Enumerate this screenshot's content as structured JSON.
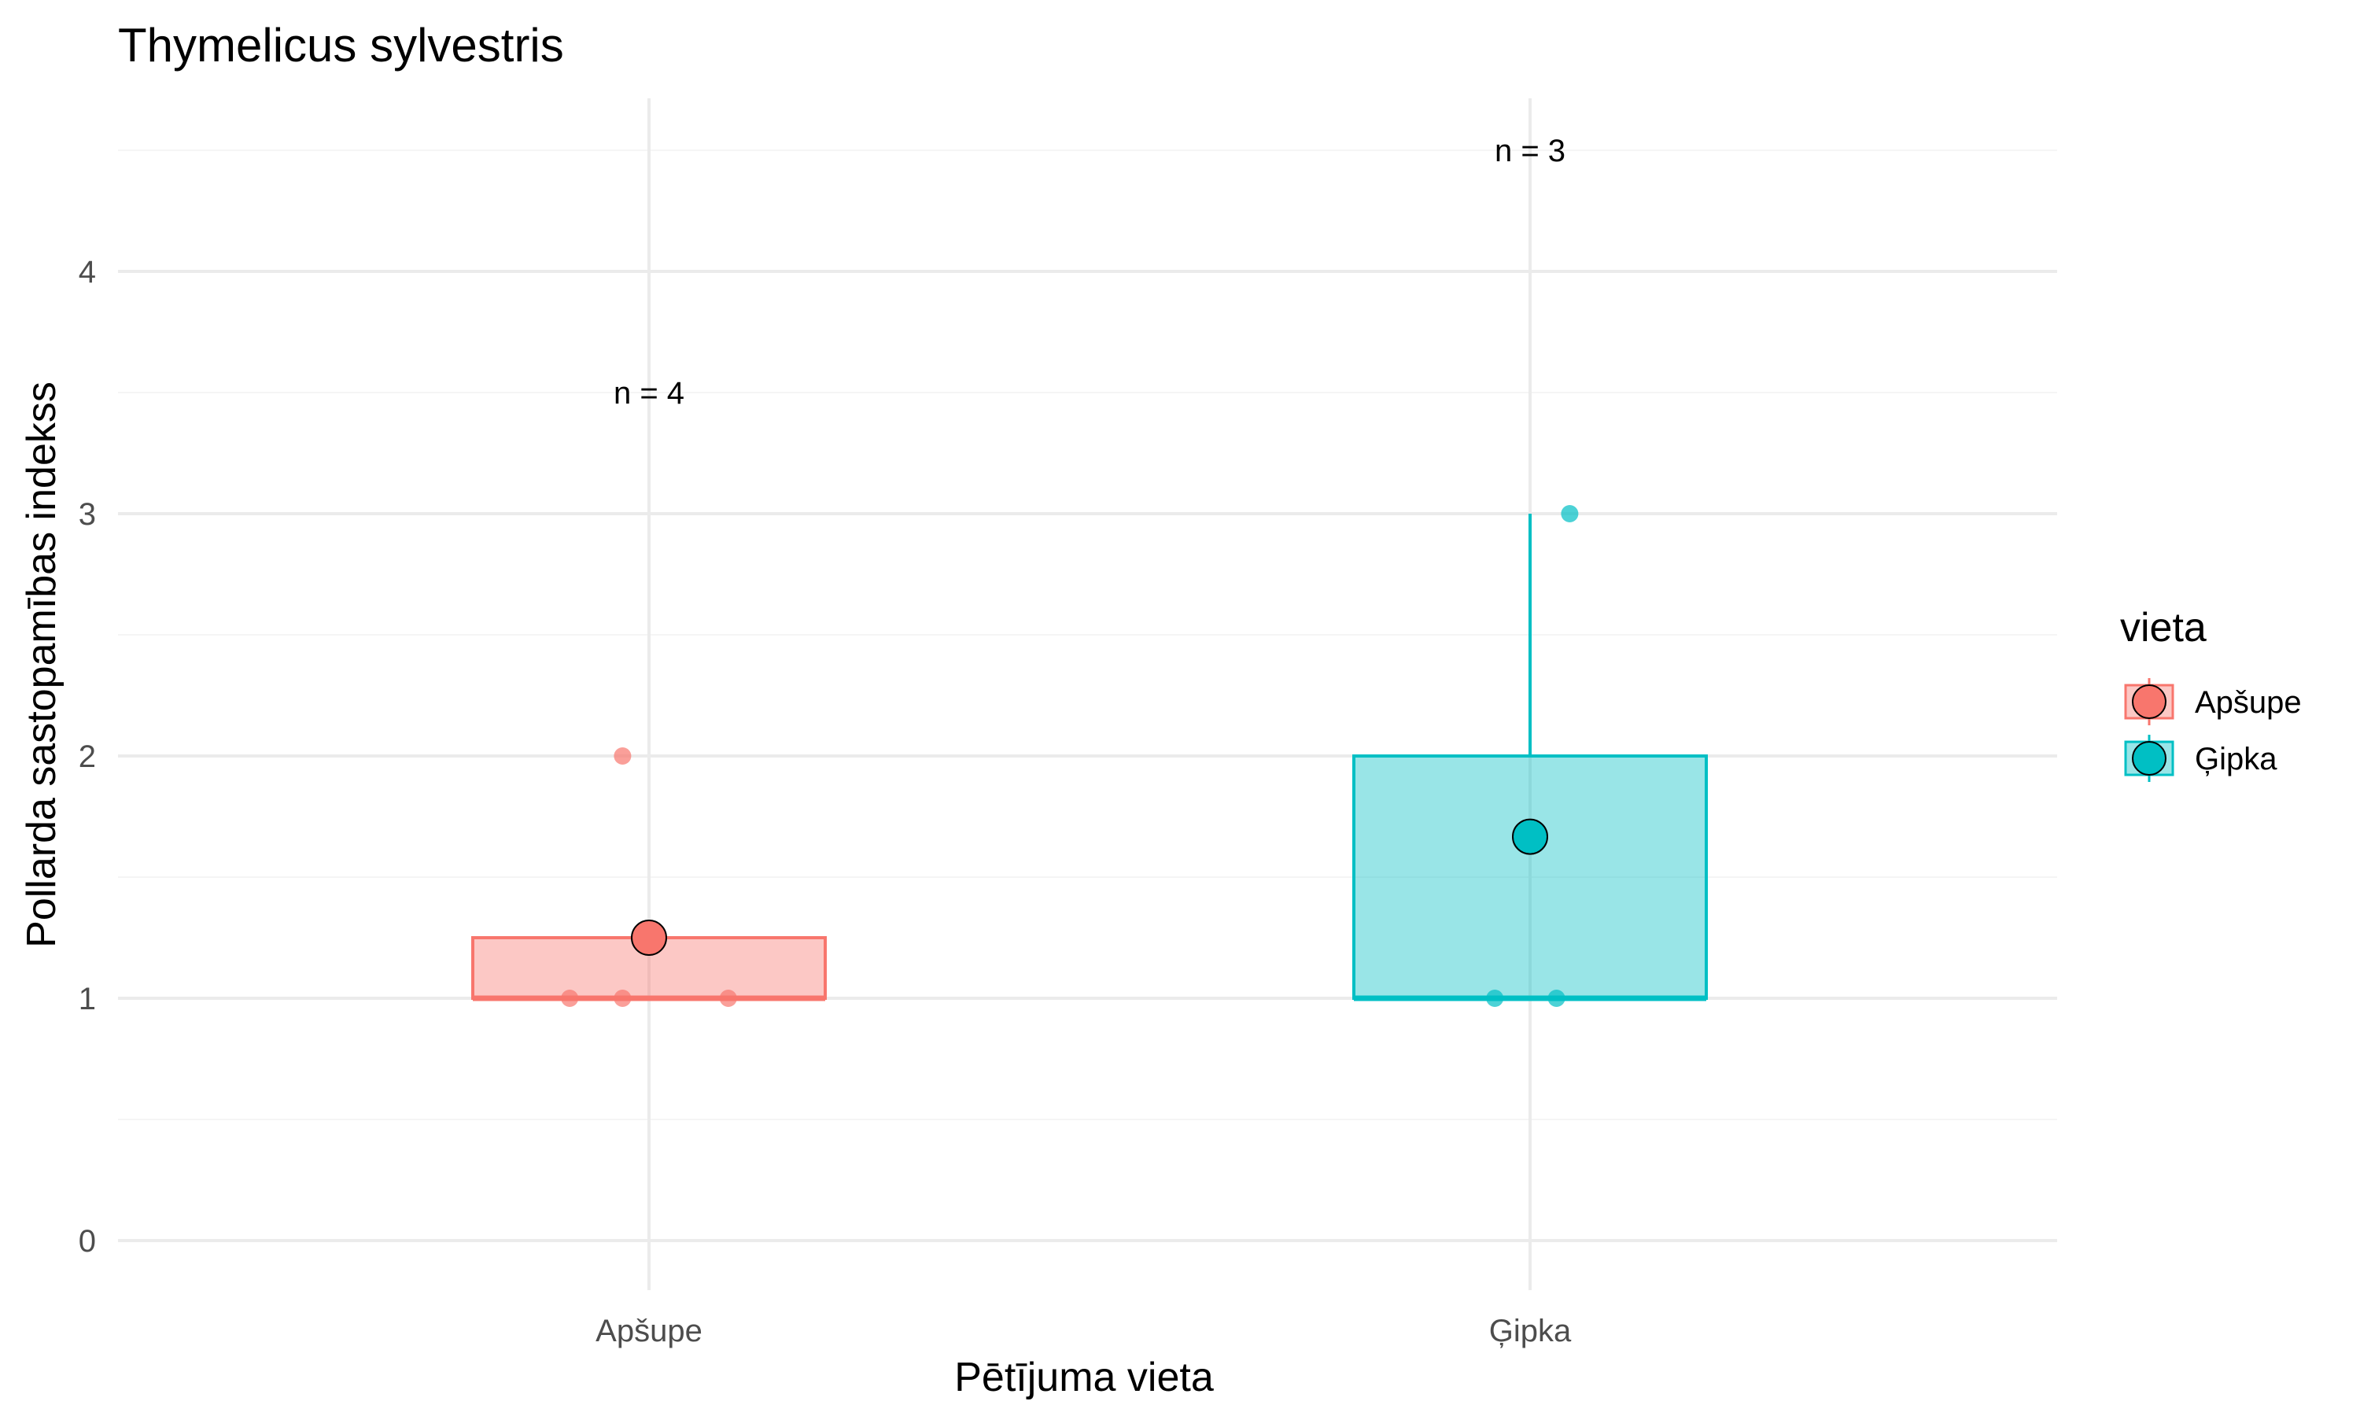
{
  "chart_data": {
    "type": "box",
    "title": "Thymelicus sylvestris",
    "xlabel": "Pētījuma vieta",
    "ylabel": "Pollarda sastopamības indekss",
    "categories": [
      "Apšupe",
      "Ģipka"
    ],
    "ylim": [
      -0.3,
      4.6
    ],
    "yticks": [
      0,
      1,
      2,
      3,
      4
    ],
    "grid": true,
    "legend": {
      "title": "vieta",
      "position": "right",
      "entries": [
        "Apšupe",
        "Ģipka"
      ]
    },
    "colors": {
      "Apšupe": "#F8766D",
      "Ģipka": "#00BFC4",
      "grid_major": "#ebebeb",
      "grid_minor": "#f5f5f5"
    },
    "boxes": [
      {
        "category": "Apšupe",
        "min": 1,
        "q1": 1,
        "median": 1,
        "q3": 1.25,
        "max": 1.25,
        "mean": 1.25,
        "n_label": "n = 4",
        "n_label_y": 3.5,
        "points": [
          {
            "x_offset": -0.09,
            "y": 1
          },
          {
            "x_offset": -0.03,
            "y": 1
          },
          {
            "x_offset": 0.09,
            "y": 1
          },
          {
            "x_offset": -0.03,
            "y": 2
          }
        ]
      },
      {
        "category": "Ģipka",
        "min": 1,
        "q1": 1,
        "median": 1,
        "q3": 2,
        "max": 3,
        "mean": 1.667,
        "n_label": "n = 3",
        "n_label_y": 4.5,
        "points": [
          {
            "x_offset": -0.04,
            "y": 1
          },
          {
            "x_offset": 0.03,
            "y": 1
          },
          {
            "x_offset": 0.045,
            "y": 3
          }
        ]
      }
    ]
  }
}
